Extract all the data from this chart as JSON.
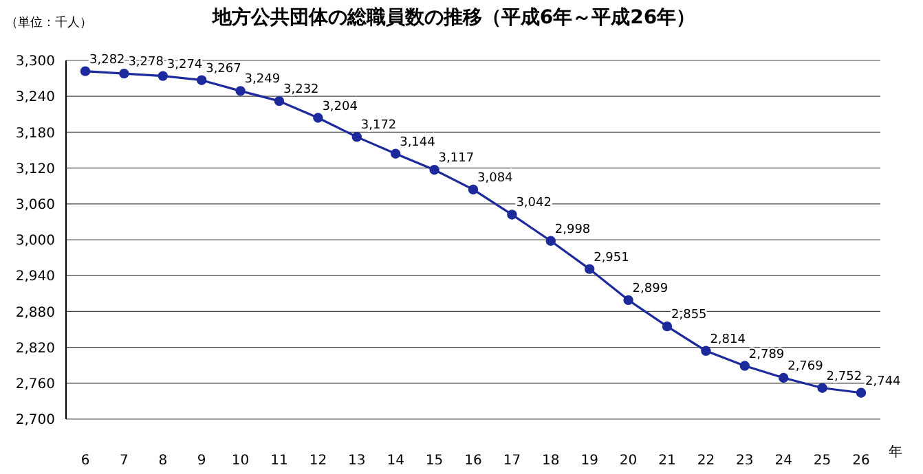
{
  "chart_data": {
    "type": "line",
    "title": "地方公共団体の総職員数の推移（平成6年～平成26年）",
    "xlabel": "年",
    "annotations": [
      "（単位：千人）"
    ],
    "categories": [
      "6",
      "7",
      "8",
      "9",
      "10",
      "11",
      "12",
      "13",
      "14",
      "15",
      "16",
      "17",
      "18",
      "19",
      "20",
      "21",
      "22",
      "23",
      "24",
      "25",
      "26"
    ],
    "series": [
      {
        "color": "#1c2a9c",
        "values": [
          3282,
          3278,
          3274,
          3267,
          3249,
          3232,
          3204,
          3172,
          3144,
          3117,
          3084,
          3042,
          2998,
          2951,
          2899,
          2855,
          2814,
          2789,
          2769,
          2752,
          2744
        ],
        "value_labels": [
          "3,282",
          "3,278",
          "3,274",
          "3,267",
          "3,249",
          "3,232",
          "3,204",
          "3,172",
          "3,144",
          "3,117",
          "3,084",
          "3,042",
          "2,998",
          "2,951",
          "2,899",
          "2,855",
          "2,814",
          "2,789",
          "2,769",
          "2,752",
          "2,744"
        ]
      }
    ],
    "ylim": [
      2700,
      3300
    ],
    "yticks": [
      {
        "value": 2700,
        "label": "2,700"
      },
      {
        "value": 2760,
        "label": "2,760"
      },
      {
        "value": 2820,
        "label": "2,820"
      },
      {
        "value": 2880,
        "label": "2,880"
      },
      {
        "value": 2940,
        "label": "2,940"
      },
      {
        "value": 3000,
        "label": "3,000"
      },
      {
        "value": 3060,
        "label": "3,060"
      },
      {
        "value": 3120,
        "label": "3,120"
      },
      {
        "value": 3180,
        "label": "3,180"
      },
      {
        "value": 3240,
        "label": "3,240"
      },
      {
        "value": 3300,
        "label": "3,300"
      }
    ],
    "grid": "y",
    "marker": "circle",
    "line_style": "solid",
    "legend": false
  }
}
